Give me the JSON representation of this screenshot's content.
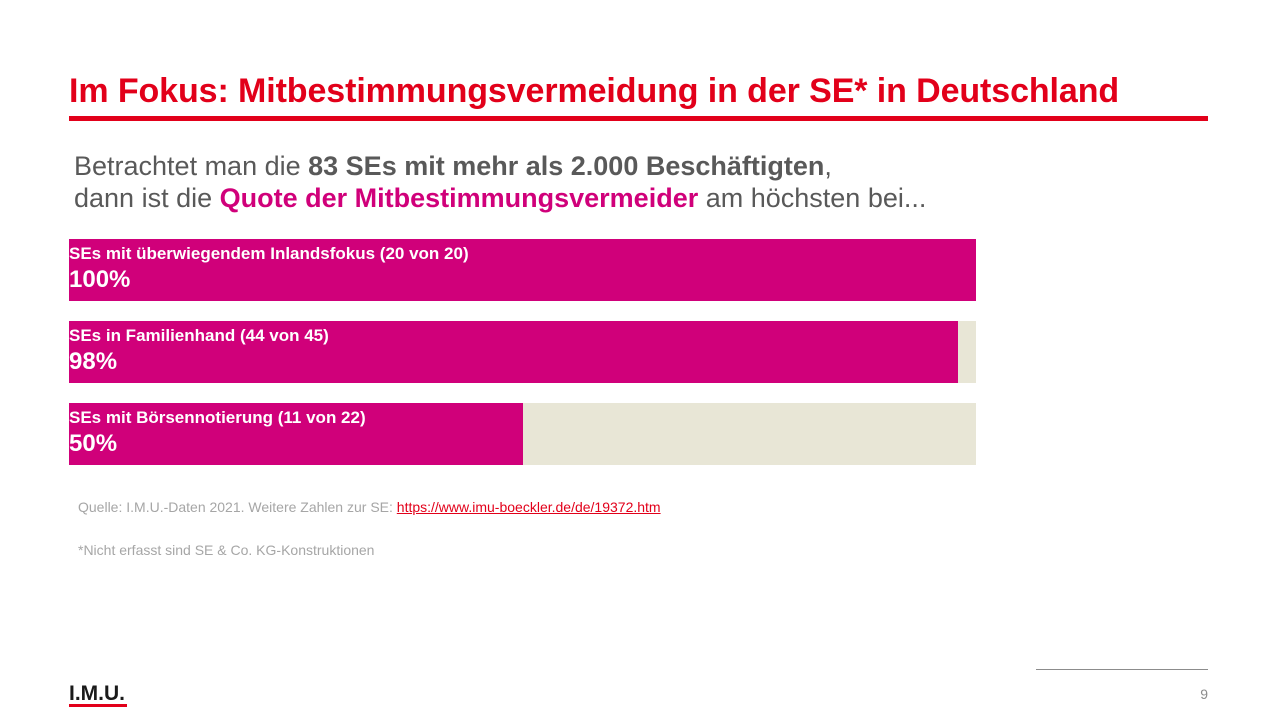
{
  "slide": {
    "title": "Im Fokus: Mitbestimmungsvermeidung in der SE* in Deutschland",
    "subtitle": {
      "line1_pre": "Betrachtet man die ",
      "line1_bold": "83 SEs mit mehr als 2.000 Beschäftigten",
      "line1_post": ",",
      "line2_pre": "dann ist die ",
      "line2_accent": "Quote der Mitbestimmungsvermeider",
      "line2_post": " am höchsten bei..."
    },
    "source": {
      "prefix": "Quelle: I.M.U.-Daten 2021. Weitere Zahlen zur SE: ",
      "link": "https://www.imu-boeckler.de/de/19372.htm"
    },
    "footnote": "*Nicht erfasst sind SE & Co. KG-Konstruktionen",
    "logo": "I.M.U.",
    "page_number": "9"
  },
  "colors": {
    "title": "#e2001a",
    "accent": "#d0007a",
    "track": "#e8e6d6",
    "text_gray": "#595959"
  },
  "chart_data": {
    "type": "bar",
    "orientation": "horizontal",
    "xlim": [
      0,
      100
    ],
    "categories": [
      "SEs mit überwiegendem Inlandsfokus (20 von 20)",
      "SEs in Familienhand (44 von 45)",
      "SEs mit Börsennotierung (11 von 22)"
    ],
    "values": [
      100,
      98,
      50
    ],
    "value_labels": [
      "100%",
      "98%",
      "50%"
    ]
  }
}
